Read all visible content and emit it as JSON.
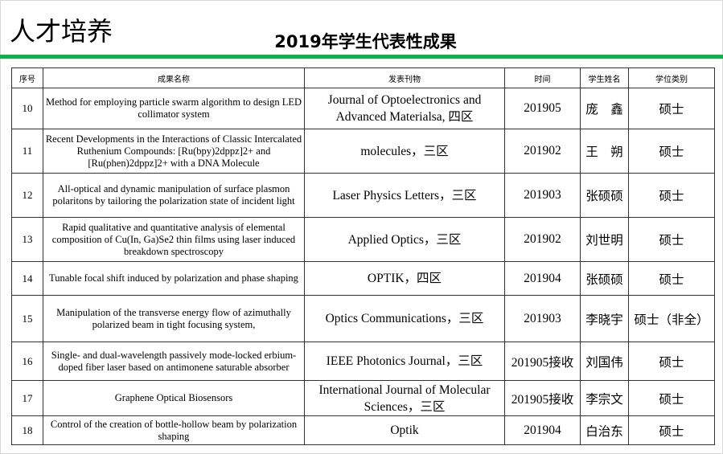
{
  "page_title": "人才培养",
  "section_title": "2019年学生代表性成果",
  "accent_color": "#10b04a",
  "table": {
    "headers": [
      "序号",
      "成果名称",
      "发表刊物",
      "时间",
      "学生姓名",
      "学位类别"
    ],
    "rows": [
      {
        "no": "10",
        "title": "Method for employing particle swarm algorithm to design LED collimator system",
        "journal": "Journal of Optoelectronics and Advanced Materialsa, 四区",
        "date": "201905",
        "student": "庞　鑫",
        "degree": "硕士"
      },
      {
        "no": "11",
        "title": "Recent Developments in the Interactions of Classic Intercalated Ruthenium Compounds: [Ru(bpy)2dppz]2+ and [Ru(phen)2dppz]2+ with a DNA Molecule",
        "journal": "molecules，三区",
        "date": "201902",
        "student": "王　朔",
        "degree": "硕士"
      },
      {
        "no": "12",
        "title": "All-optical and dynamic manipulation of surface plasmon polaritons by tailoring the polarization state of incident light",
        "journal": "Laser Physics Letters，三区",
        "date": "201903",
        "student": "张硕硕",
        "degree": "硕士"
      },
      {
        "no": "13",
        "title": "Rapid qualitative and quantitative analysis of elemental composition of Cu(In, Ga)Se2 thin films using laser induced breakdown spectroscopy",
        "journal": "Applied Optics，三区",
        "date": "201902",
        "student": "刘世明",
        "degree": "硕士"
      },
      {
        "no": "14",
        "title": "Tunable focal shift induced by polarization and phase shaping",
        "journal": "OPTIK，四区",
        "date": "201904",
        "student": "张硕硕",
        "degree": "硕士"
      },
      {
        "no": "15",
        "title": "Manipulation of the transverse energy flow of azimuthally polarized beam in tight focusing system,",
        "journal": "Optics Communications，三区",
        "date": "201903",
        "student": "李晓宇",
        "degree": "硕士（非全）"
      },
      {
        "no": "16",
        "title": "Single- and dual-wavelength passively mode-locked erbium-doped fiber laser based on antimonene saturable absorber",
        "journal": "IEEE Photonics Journal，三区",
        "date": "201905接收",
        "student": "刘国伟",
        "degree": "硕士"
      },
      {
        "no": "17",
        "title": "Graphene Optical Biosensors",
        "journal": "International Journal of Molecular Sciences，三区",
        "date": "201905接收",
        "student": "李宗文",
        "degree": "硕士"
      },
      {
        "no": "18",
        "title": "Control of the creation of bottle-hollow beam by polarization shaping",
        "journal": "Optik",
        "date": "201904",
        "student": "白治东",
        "degree": "硕士"
      }
    ]
  }
}
